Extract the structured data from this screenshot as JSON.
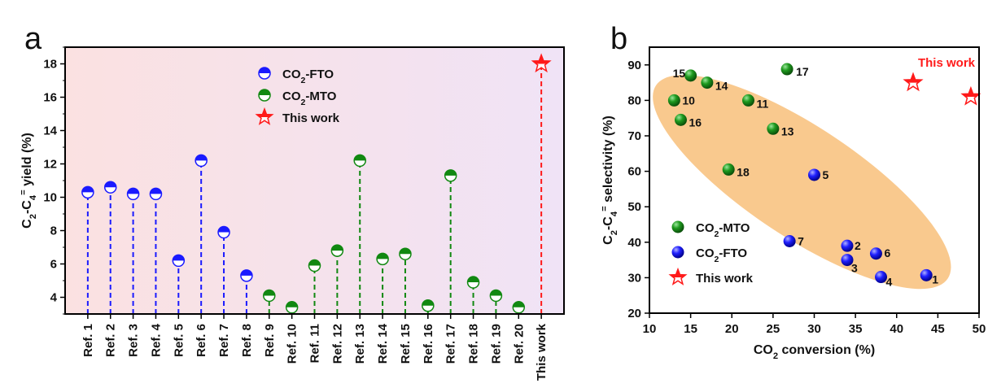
{
  "colors": {
    "fto": "#1a1aff",
    "mto": "#118811",
    "this_work": "#ff1a1a",
    "ellipse": "#f9c98e",
    "bg_left": "#fbe1e1",
    "bg_right": "#f0e3f6"
  },
  "chart_data": [
    {
      "panel_label": "a",
      "type": "stem",
      "ylabel": "C2-C4= yield (%)",
      "ylim": [
        3,
        19
      ],
      "yticks": [
        4,
        6,
        8,
        10,
        12,
        14,
        16,
        18
      ],
      "categories": [
        "Ref. 1",
        "Ref. 2",
        "Ref. 3",
        "Ref. 4",
        "Ref. 5",
        "Ref. 6",
        "Ref. 7",
        "Ref. 8",
        "Ref. 9",
        "Ref. 10",
        "Ref. 11",
        "Ref. 12",
        "Ref. 13",
        "Ref. 14",
        "Ref. 15",
        "Ref. 16",
        "Ref. 17",
        "Ref. 18",
        "Ref. 19",
        "Ref. 20",
        "This work"
      ],
      "values": [
        10.3,
        10.6,
        10.2,
        10.2,
        6.2,
        12.2,
        7.9,
        5.3,
        4.1,
        3.4,
        5.9,
        6.8,
        12.2,
        6.3,
        6.6,
        3.5,
        11.3,
        4.9,
        4.1,
        3.4,
        18.0
      ],
      "groups": [
        "fto",
        "fto",
        "fto",
        "fto",
        "fto",
        "fto",
        "fto",
        "fto",
        "mto",
        "mto",
        "mto",
        "mto",
        "mto",
        "mto",
        "mto",
        "mto",
        "mto",
        "mto",
        "mto",
        "mto",
        "this_work"
      ],
      "legend": [
        {
          "key": "fto",
          "label": "CO2-FTO"
        },
        {
          "key": "mto",
          "label": "CO2-MTO"
        },
        {
          "key": "this_work",
          "label": "This work"
        }
      ],
      "legend_placement": "top-center",
      "background": "gradient pink to lavender"
    },
    {
      "panel_label": "b",
      "type": "scatter",
      "xlabel": "CO2 conversion (%)",
      "ylabel": "C2-C4= selectivity (%)",
      "xlim": [
        10,
        50
      ],
      "ylim": [
        20,
        95
      ],
      "xticks": [
        10,
        15,
        20,
        25,
        30,
        35,
        40,
        45,
        50
      ],
      "yticks": [
        20,
        30,
        40,
        50,
        60,
        70,
        80,
        90
      ],
      "series": [
        {
          "key": "mto",
          "name": "CO2-MTO",
          "points": [
            {
              "label": "10",
              "x": 13,
              "y": 80
            },
            {
              "label": "11",
              "x": 22,
              "y": 80
            },
            {
              "label": "13",
              "x": 25,
              "y": 72
            },
            {
              "label": "14",
              "x": 17,
              "y": 85
            },
            {
              "label": "15",
              "x": 15,
              "y": 87
            },
            {
              "label": "16",
              "x": 13.8,
              "y": 74.5
            },
            {
              "label": "17",
              "x": 26.7,
              "y": 88.8
            },
            {
              "label": "18",
              "x": 19.6,
              "y": 60.5
            }
          ]
        },
        {
          "key": "fto",
          "name": "CO2-FTO",
          "points": [
            {
              "label": "1",
              "x": 43.6,
              "y": 30.7
            },
            {
              "label": "2",
              "x": 34,
              "y": 39
            },
            {
              "label": "3",
              "x": 34,
              "y": 35
            },
            {
              "label": "4",
              "x": 38.1,
              "y": 30.2
            },
            {
              "label": "5",
              "x": 30,
              "y": 59
            },
            {
              "label": "6",
              "x": 37.5,
              "y": 36.8
            },
            {
              "label": "7",
              "x": 27,
              "y": 40.3
            }
          ]
        },
        {
          "key": "this_work",
          "name": "This work",
          "points": [
            {
              "x": 42,
              "y": 85
            },
            {
              "x": 49,
              "y": 81
            }
          ]
        }
      ],
      "annotation": "This work",
      "legend_placement": "bottom-left"
    }
  ]
}
